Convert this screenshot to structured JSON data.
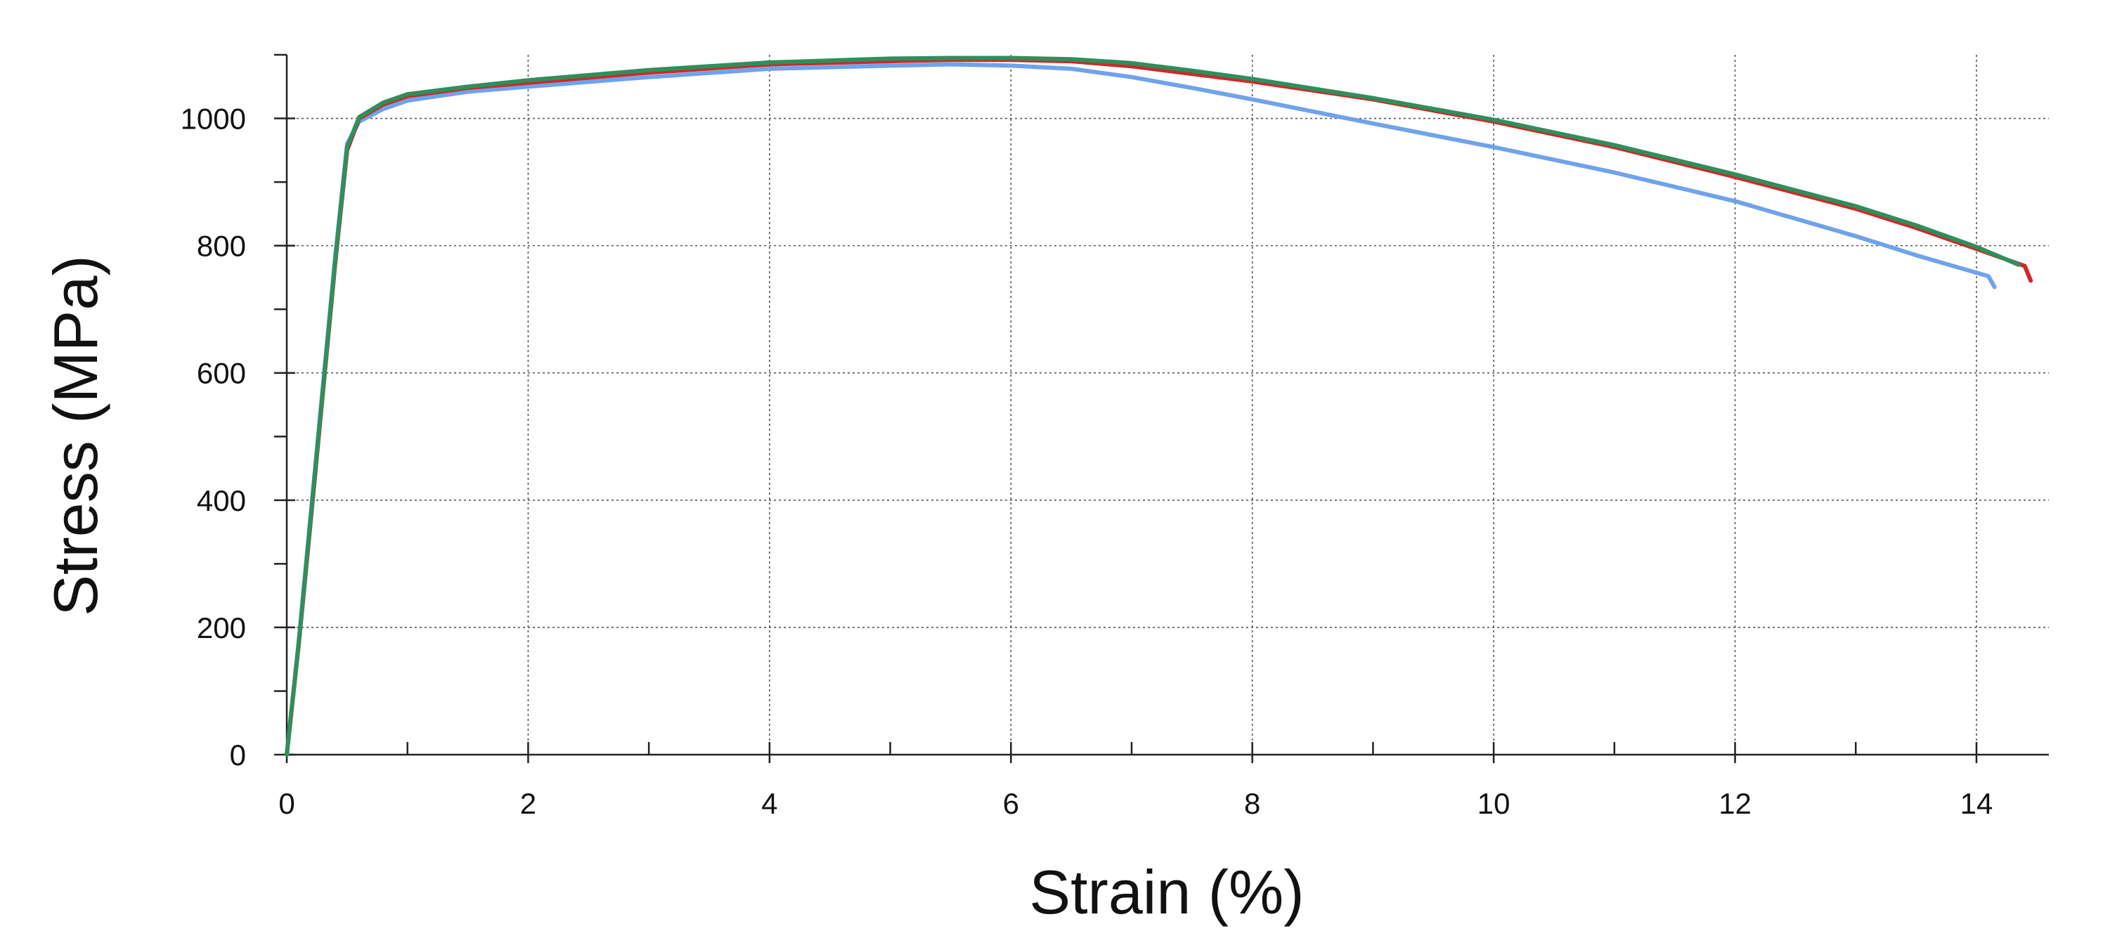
{
  "chart_data": {
    "type": "line",
    "title": "",
    "xlabel": "Strain (%)",
    "ylabel": "Stress (MPa)",
    "xlim": [
      0,
      14.6
    ],
    "ylim": [
      0,
      1100
    ],
    "x_ticks": [
      "0",
      "2",
      "4",
      "6",
      "8",
      "10",
      "12",
      "14"
    ],
    "y_ticks": [
      "0",
      "200",
      "400",
      "600",
      "800",
      "1000"
    ],
    "grid": true,
    "legend": "none",
    "series": [
      {
        "color": "#6fa3ea",
        "points": [
          [
            0,
            0
          ],
          [
            0.1,
            180
          ],
          [
            0.2,
            380
          ],
          [
            0.3,
            580
          ],
          [
            0.4,
            780
          ],
          [
            0.5,
            960
          ],
          [
            0.6,
            995
          ],
          [
            0.8,
            1015
          ],
          [
            1.0,
            1028
          ],
          [
            1.5,
            1042
          ],
          [
            2,
            1050
          ],
          [
            3,
            1065
          ],
          [
            4,
            1078
          ],
          [
            5,
            1083
          ],
          [
            5.5,
            1085
          ],
          [
            6,
            1083
          ],
          [
            6.5,
            1078
          ],
          [
            7,
            1065
          ],
          [
            7.5,
            1048
          ],
          [
            8,
            1030
          ],
          [
            9,
            992
          ],
          [
            10,
            955
          ],
          [
            11,
            915
          ],
          [
            12,
            870
          ],
          [
            13,
            815
          ],
          [
            13.5,
            785
          ],
          [
            14.1,
            752
          ],
          [
            14.15,
            735
          ]
        ]
      },
      {
        "color": "#cc2a2a",
        "points": [
          [
            0,
            0
          ],
          [
            0.1,
            175
          ],
          [
            0.2,
            370
          ],
          [
            0.3,
            570
          ],
          [
            0.4,
            770
          ],
          [
            0.5,
            950
          ],
          [
            0.6,
            1000
          ],
          [
            0.8,
            1022
          ],
          [
            1.0,
            1035
          ],
          [
            1.5,
            1048
          ],
          [
            2,
            1056
          ],
          [
            3,
            1072
          ],
          [
            4,
            1085
          ],
          [
            5,
            1090
          ],
          [
            5.5,
            1092
          ],
          [
            6,
            1092
          ],
          [
            6.5,
            1090
          ],
          [
            7,
            1082
          ],
          [
            7.5,
            1070
          ],
          [
            8,
            1058
          ],
          [
            9,
            1030
          ],
          [
            10,
            995
          ],
          [
            11,
            955
          ],
          [
            12,
            908
          ],
          [
            13,
            858
          ],
          [
            13.5,
            828
          ],
          [
            14,
            795
          ],
          [
            14.4,
            768
          ],
          [
            14.45,
            745
          ]
        ]
      },
      {
        "color": "#2f8f5b",
        "points": [
          [
            0,
            0
          ],
          [
            0.1,
            178
          ],
          [
            0.2,
            375
          ],
          [
            0.3,
            575
          ],
          [
            0.4,
            775
          ],
          [
            0.5,
            955
          ],
          [
            0.6,
            1002
          ],
          [
            0.8,
            1025
          ],
          [
            1.0,
            1038
          ],
          [
            1.5,
            1050
          ],
          [
            2,
            1060
          ],
          [
            3,
            1076
          ],
          [
            4,
            1088
          ],
          [
            5,
            1094
          ],
          [
            5.5,
            1095
          ],
          [
            6,
            1095
          ],
          [
            6.5,
            1093
          ],
          [
            7,
            1087
          ],
          [
            7.5,
            1075
          ],
          [
            8,
            1062
          ],
          [
            9,
            1032
          ],
          [
            10,
            998
          ],
          [
            11,
            958
          ],
          [
            12,
            912
          ],
          [
            13,
            862
          ],
          [
            13.5,
            832
          ],
          [
            14,
            798
          ],
          [
            14.35,
            770
          ]
        ]
      }
    ]
  }
}
